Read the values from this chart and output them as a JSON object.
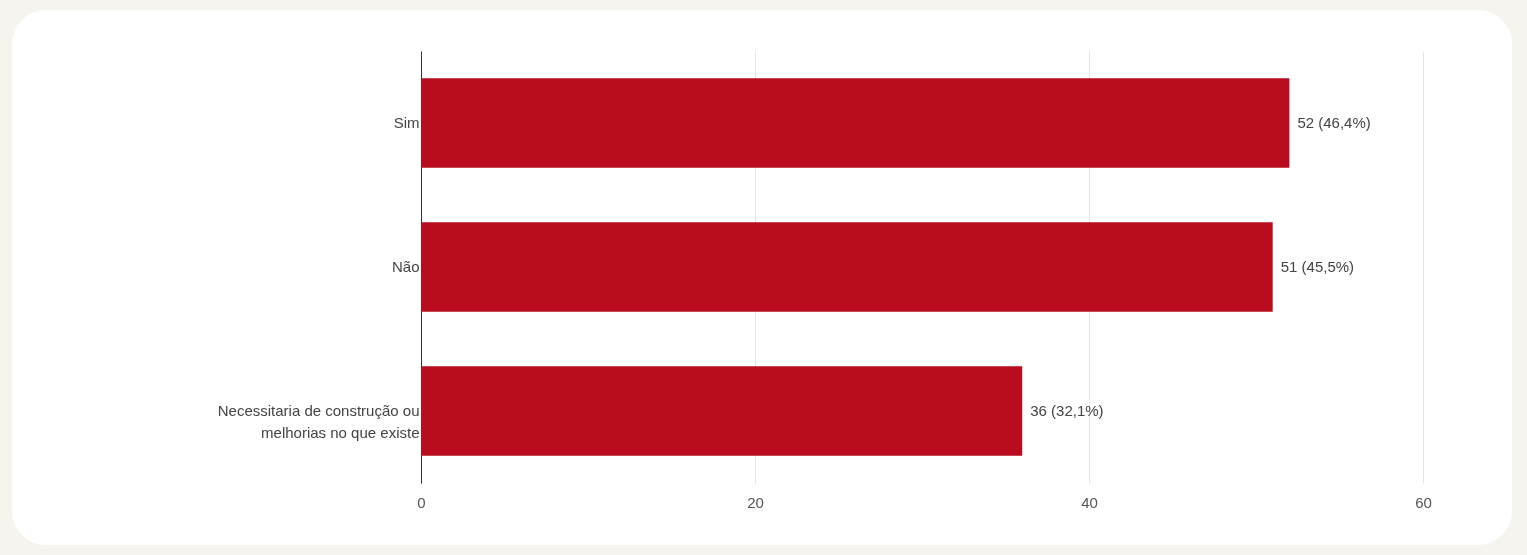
{
  "chart_data": {
    "type": "bar",
    "orientation": "horizontal",
    "categories": [
      "Sim",
      "Não",
      "Necessitaria de construção ou melhorias no que existe"
    ],
    "values": [
      52,
      51,
      36
    ],
    "value_labels": [
      "52 (46,4%)",
      "51 (45,5%)",
      "36 (32,1%)"
    ],
    "color": "#b90d1f",
    "xlim": [
      0,
      60
    ],
    "xticks": [
      0,
      20,
      40,
      60
    ],
    "grid": "x"
  }
}
